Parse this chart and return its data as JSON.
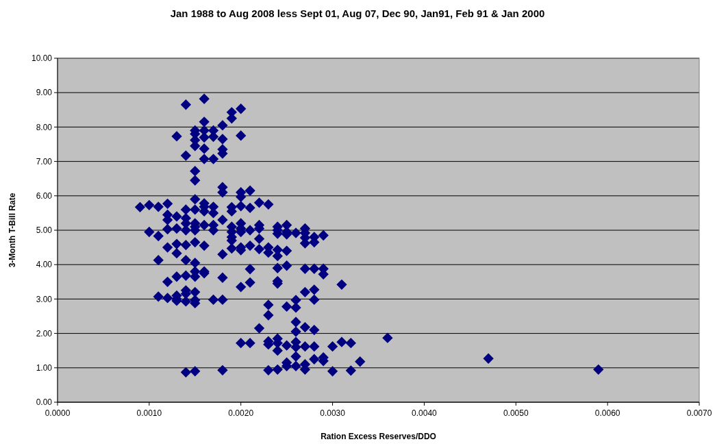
{
  "chart_data": {
    "type": "scatter",
    "title": "Jan 1988 to Aug 2008 less Sept 01, Aug 07, Dec 90, Jan91, Feb 91 & Jan 2000",
    "xlabel": "Ration Excess Reserves/DDO",
    "ylabel": "3-Month T-Bill Rate",
    "xlim": [
      0,
      0.007
    ],
    "ylim": [
      0,
      10
    ],
    "xticks": [
      {
        "value": 0,
        "label": "0.0000"
      },
      {
        "value": 0.001,
        "label": "0.0010"
      },
      {
        "value": 0.002,
        "label": "0.0020"
      },
      {
        "value": 0.003,
        "label": "0.0030"
      },
      {
        "value": 0.004,
        "label": "0.0040"
      },
      {
        "value": 0.005,
        "label": "0.0050"
      },
      {
        "value": 0.006,
        "label": "0.0060"
      },
      {
        "value": 0.007,
        "label": "0.0070"
      }
    ],
    "yticks": [
      {
        "value": 0,
        "label": "0.00"
      },
      {
        "value": 1,
        "label": "1.00"
      },
      {
        "value": 2,
        "label": "2.00"
      },
      {
        "value": 3,
        "label": "3.00"
      },
      {
        "value": 4,
        "label": "4.00"
      },
      {
        "value": 5,
        "label": "5.00"
      },
      {
        "value": 6,
        "label": "6.00"
      },
      {
        "value": 7,
        "label": "7.00"
      },
      {
        "value": 8,
        "label": "8.00"
      },
      {
        "value": 9,
        "label": "9.00"
      },
      {
        "value": 10,
        "label": "10.00"
      }
    ],
    "grid": "y",
    "marker": "diamond",
    "series": [
      {
        "color": "#000080",
        "x": [
          0.0009,
          0.001,
          0.001,
          0.0011,
          0.0011,
          0.0011,
          0.0011,
          0.0012,
          0.0012,
          0.0012,
          0.0012,
          0.0012,
          0.0012,
          0.0012,
          0.0013,
          0.0013,
          0.0013,
          0.0013,
          0.0013,
          0.0013,
          0.0013,
          0.0013,
          0.0013,
          0.0014,
          0.0014,
          0.0014,
          0.0014,
          0.0014,
          0.0014,
          0.0014,
          0.0014,
          0.0014,
          0.0014,
          0.0014,
          0.0014,
          0.0014,
          0.0015,
          0.0015,
          0.0015,
          0.0015,
          0.0015,
          0.0015,
          0.0015,
          0.0015,
          0.0015,
          0.0015,
          0.0015,
          0.0015,
          0.0015,
          0.0015,
          0.0015,
          0.0015,
          0.0015,
          0.0015,
          0.0015,
          0.0016,
          0.0016,
          0.0016,
          0.0016,
          0.0016,
          0.0016,
          0.0016,
          0.0016,
          0.0016,
          0.0016,
          0.0016,
          0.0016,
          0.0016,
          0.0017,
          0.0017,
          0.0017,
          0.0017,
          0.0017,
          0.0017,
          0.0017,
          0.0017,
          0.0018,
          0.0018,
          0.0018,
          0.0018,
          0.0018,
          0.0018,
          0.0018,
          0.0018,
          0.0018,
          0.0018,
          0.0018,
          0.0019,
          0.0019,
          0.0019,
          0.0019,
          0.0019,
          0.0019,
          0.0019,
          0.0019,
          0.0019,
          0.002,
          0.002,
          0.002,
          0.002,
          0.002,
          0.002,
          0.002,
          0.002,
          0.002,
          0.002,
          0.002,
          0.002,
          0.0021,
          0.0021,
          0.0021,
          0.0021,
          0.0021,
          0.0021,
          0.0021,
          0.0022,
          0.0022,
          0.0022,
          0.0022,
          0.0022,
          0.0022,
          0.0023,
          0.0023,
          0.0023,
          0.0023,
          0.0023,
          0.0023,
          0.0023,
          0.0023,
          0.0024,
          0.0024,
          0.0024,
          0.0024,
          0.0024,
          0.0024,
          0.0024,
          0.0024,
          0.0024,
          0.0024,
          0.0024,
          0.0024,
          0.0025,
          0.0025,
          0.0025,
          0.0025,
          0.0025,
          0.0025,
          0.0025,
          0.0025,
          0.0025,
          0.0026,
          0.0026,
          0.0026,
          0.0026,
          0.0026,
          0.0026,
          0.0026,
          0.0026,
          0.0026,
          0.0027,
          0.0027,
          0.0027,
          0.0027,
          0.0027,
          0.0027,
          0.0027,
          0.0027,
          0.0027,
          0.0027,
          0.0028,
          0.0028,
          0.0028,
          0.0028,
          0.0028,
          0.0028,
          0.0028,
          0.0028,
          0.0029,
          0.0029,
          0.0029,
          0.0029,
          0.0029,
          0.003,
          0.003,
          0.0031,
          0.0031,
          0.0032,
          0.0032,
          0.0033,
          0.0036,
          0.0047,
          0.0059
        ],
        "values": [
          5.67,
          5.73,
          4.95,
          5.68,
          4.83,
          4.13,
          3.07,
          5.77,
          5.45,
          5.3,
          5.03,
          4.5,
          3.5,
          3.03,
          7.73,
          5.4,
          5.05,
          4.6,
          4.33,
          3.65,
          3.1,
          3,
          2.95,
          8.65,
          7.17,
          5.6,
          5.35,
          5.2,
          5,
          4.57,
          4.13,
          3.68,
          3.25,
          3.15,
          2.93,
          0.87,
          7.9,
          7.8,
          7.62,
          7.45,
          6.72,
          6.45,
          5.9,
          5.6,
          5.2,
          5.1,
          5,
          4.65,
          4.05,
          3.8,
          3.65,
          3.2,
          2.97,
          2.88,
          0.9,
          8.82,
          8.15,
          7.9,
          7.7,
          7.37,
          7.07,
          5.78,
          5.68,
          5.55,
          5.15,
          4.55,
          3.8,
          3.75,
          7.9,
          7.72,
          7.07,
          5.68,
          5.5,
          5.15,
          5,
          2.98,
          8.05,
          7.65,
          7.35,
          7.23,
          6.25,
          6.1,
          5.3,
          4.3,
          3.62,
          2.98,
          0.93,
          8.43,
          8.25,
          5.67,
          5.55,
          5.1,
          4.95,
          4.8,
          4.7,
          4.47,
          8.53,
          7.75,
          6.1,
          5.97,
          5.7,
          5.2,
          5.05,
          4.95,
          4.5,
          4.42,
          3.35,
          1.72,
          6.15,
          5.65,
          5,
          4.55,
          3.87,
          3.48,
          1.72,
          5.8,
          5.15,
          5.05,
          4.75,
          4.45,
          2.15,
          5.75,
          4.5,
          4.35,
          2.83,
          2.53,
          1.77,
          1.68,
          0.93,
          5.1,
          5,
          4.9,
          4.43,
          4.25,
          3.9,
          3.52,
          3.45,
          1.85,
          1.72,
          1.5,
          0.95,
          5.15,
          4.95,
          4.88,
          4.4,
          3.97,
          2.78,
          1.65,
          1.15,
          1.05,
          4.92,
          2.97,
          2.75,
          2.33,
          2.05,
          1.75,
          1.6,
          1.33,
          1.05,
          5.05,
          4.92,
          4.78,
          4.62,
          3.88,
          3.2,
          2.18,
          1.62,
          1.1,
          0.95,
          4.8,
          4.65,
          3.88,
          3.27,
          2.98,
          2.1,
          1.62,
          1.25,
          4.85,
          3.88,
          3.72,
          1.3,
          1.2,
          1.62,
          0.9,
          3.42,
          1.75,
          1.72,
          0.92,
          1.18,
          1.87,
          1.27,
          0.95
        ]
      }
    ]
  }
}
